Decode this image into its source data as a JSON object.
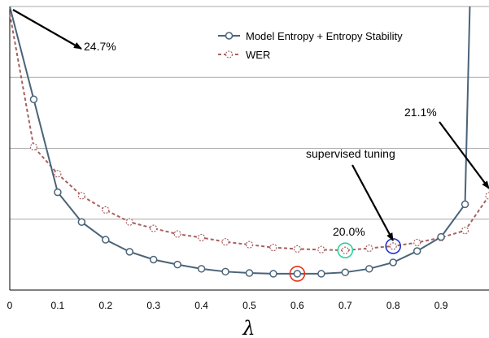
{
  "chart_data": {
    "type": "line",
    "xlabel": "λ",
    "ylabel": "",
    "xlim": [
      0,
      1
    ],
    "ylim": [
      0,
      4
    ],
    "x_ticks": [
      "0",
      "0.1",
      "0.2",
      "0.3",
      "0.4",
      "0.5",
      "0.6",
      "0.7",
      "0.8",
      "0.9"
    ],
    "grid": "horizontal",
    "legend_position": "top-right",
    "series": [
      {
        "name": "Model Entropy + Entropy Stability",
        "color": "#4a6378",
        "marker": "circle",
        "x": [
          0.0,
          0.05,
          0.1,
          0.15,
          0.2,
          0.25,
          0.3,
          0.35,
          0.4,
          0.45,
          0.5,
          0.55,
          0.6,
          0.65,
          0.7,
          0.75,
          0.8,
          0.85,
          0.9,
          0.95,
          0.96
        ],
        "values": [
          4.0,
          2.69,
          1.38,
          0.96,
          0.71,
          0.54,
          0.43,
          0.36,
          0.3,
          0.26,
          0.24,
          0.23,
          0.23,
          0.23,
          0.25,
          0.3,
          0.39,
          0.55,
          0.75,
          1.21,
          4.0
        ]
      },
      {
        "name": "WER",
        "color": "#a86060",
        "marker": "circle-open",
        "style": "dashed",
        "x": [
          0.0,
          0.05,
          0.1,
          0.15,
          0.2,
          0.25,
          0.3,
          0.35,
          0.4,
          0.45,
          0.5,
          0.55,
          0.6,
          0.65,
          0.7,
          0.75,
          0.8,
          0.85,
          0.9,
          0.95,
          1.0
        ],
        "values": [
          3.9,
          2.02,
          1.64,
          1.33,
          1.13,
          0.96,
          0.87,
          0.79,
          0.74,
          0.68,
          0.64,
          0.6,
          0.58,
          0.57,
          0.56,
          0.59,
          0.62,
          0.67,
          0.74,
          0.84,
          1.33
        ]
      }
    ],
    "highlight_markers": [
      {
        "x": 0.6,
        "y": 0.23,
        "color": "#e8301c"
      },
      {
        "x": 0.7,
        "y": 0.56,
        "color": "#2fd19a"
      },
      {
        "x": 0.8,
        "y": 0.62,
        "color": "#2233cc"
      }
    ],
    "annotations": [
      {
        "text": "24.7%"
      },
      {
        "text": "21.1%"
      },
      {
        "text": "supervised tuning"
      },
      {
        "text": "20.0%"
      }
    ]
  }
}
